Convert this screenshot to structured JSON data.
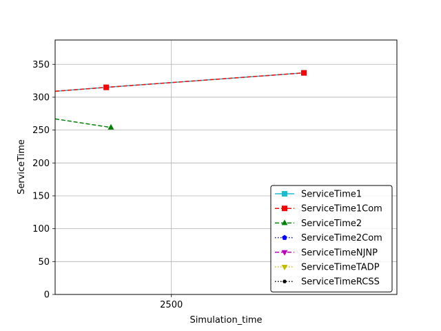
{
  "chart_data": {
    "type": "line",
    "title": "",
    "xlabel": "Simulation_time",
    "ylabel": "ServiceTime",
    "xlim": [
      2000,
      3470
    ],
    "ylim": [
      0,
      387
    ],
    "xticks": [
      2500
    ],
    "yticks": [
      0,
      50,
      100,
      150,
      200,
      250,
      300,
      350
    ],
    "grid": true,
    "legend_position": "lower right",
    "series": [
      {
        "name": "ServiceTime1",
        "color": "#17becf",
        "dash": "solid",
        "marker": "square",
        "x": [
          2000,
          2220,
          3070
        ],
        "y": [
          309,
          315,
          337
        ]
      },
      {
        "name": "ServiceTime1Com",
        "color": "#ff0000",
        "dash": "dashed",
        "marker": "square",
        "x": [
          2000,
          2220,
          3070
        ],
        "y": [
          309,
          315,
          337
        ]
      },
      {
        "name": "ServiceTime2",
        "color": "#008000",
        "dash": "dashed",
        "marker": "triangle-up",
        "x": [
          2000,
          2240
        ],
        "y": [
          267,
          254
        ]
      },
      {
        "name": "ServiceTime2Com",
        "color": "#0000ff",
        "dash": "dotted",
        "marker": "pentagon",
        "x": [],
        "y": []
      },
      {
        "name": "ServiceTimeNJNP",
        "color": "#bf00bf",
        "dash": "dashed",
        "marker": "triangle-down",
        "x": [],
        "y": []
      },
      {
        "name": "ServiceTimeTADP",
        "color": "#bfbf00",
        "dash": "dotted",
        "marker": "triangle-down",
        "x": [],
        "y": []
      },
      {
        "name": "ServiceTimeRCSS",
        "color": "#000000",
        "dash": "dotted",
        "marker": "hexagon",
        "x": [],
        "y": []
      }
    ]
  }
}
